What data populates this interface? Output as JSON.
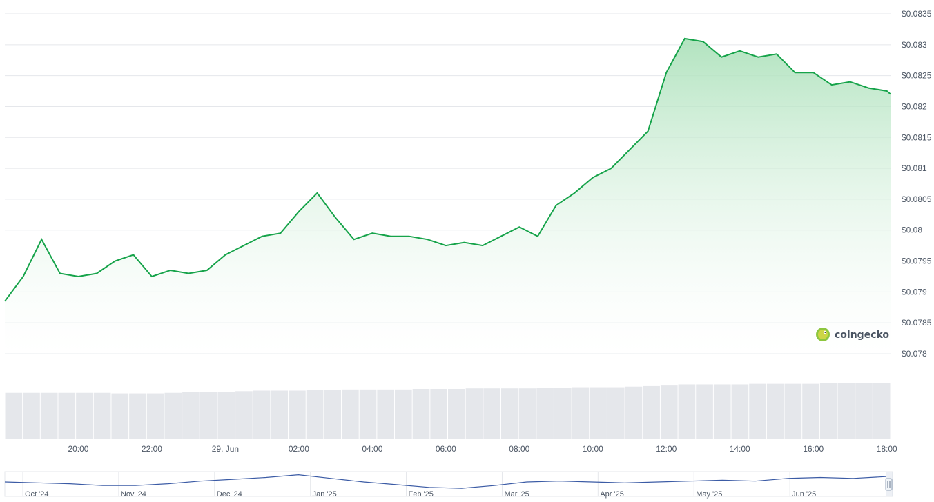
{
  "brand": {
    "name": "coingecko",
    "logo_icon": "coingecko-gecko-icon",
    "accent": "#8dc63f"
  },
  "colors": {
    "line": "#16a34a",
    "area_top": "#b7e6c3",
    "volume": "#e5e7eb",
    "navigator_line": "#3b5ba5",
    "grid": "#e5e7eb"
  },
  "chart_data": {
    "type": "area",
    "title": "",
    "xlabel": "",
    "ylabel": "",
    "ylim": [
      0.078,
      0.0835
    ],
    "y_ticks": [
      "$0.0835",
      "$0.083",
      "$0.0825",
      "$0.082",
      "$0.0815",
      "$0.081",
      "$0.0805",
      "$0.08",
      "$0.0795",
      "$0.079",
      "$0.0785",
      "$0.078"
    ],
    "x_ticks": [
      "20:00",
      "22:00",
      "29. Jun",
      "02:00",
      "04:00",
      "06:00",
      "08:00",
      "10:00",
      "12:00",
      "14:00",
      "16:00",
      "18:00"
    ],
    "x_tick_hours": [
      20,
      22,
      24,
      26,
      28,
      30,
      32,
      34,
      36,
      38,
      40,
      42
    ],
    "grid": true,
    "series": [
      {
        "x_hours": [
          18.0,
          18.5,
          19.0,
          19.5,
          20.0,
          20.5,
          21.0,
          21.5,
          22.0,
          22.5,
          23.0,
          23.5,
          24.0,
          24.5,
          25.0,
          25.5,
          26.0,
          26.5,
          27.0,
          27.5,
          28.0,
          28.5,
          29.0,
          29.5,
          30.0,
          30.5,
          31.0,
          31.5,
          32.0,
          32.5,
          33.0,
          33.5,
          34.0,
          34.5,
          35.0,
          35.5,
          36.0,
          36.5,
          37.0,
          37.5,
          38.0,
          38.5,
          39.0,
          39.5,
          40.0,
          40.5,
          41.0,
          41.5,
          42.0,
          42.1
        ],
        "values": [
          0.07885,
          0.07925,
          0.07985,
          0.0793,
          0.07925,
          0.0793,
          0.0795,
          0.0796,
          0.07925,
          0.07935,
          0.0793,
          0.07935,
          0.0796,
          0.07975,
          0.0799,
          0.07995,
          0.0803,
          0.0806,
          0.0802,
          0.07985,
          0.07995,
          0.0799,
          0.0799,
          0.07985,
          0.07975,
          0.0798,
          0.07975,
          0.0799,
          0.08005,
          0.0799,
          0.0804,
          0.0806,
          0.08085,
          0.081,
          0.0813,
          0.0816,
          0.08255,
          0.0831,
          0.08305,
          0.0828,
          0.0829,
          0.0828,
          0.08285,
          0.08255,
          0.08255,
          0.08235,
          0.0824,
          0.0823,
          0.08225,
          0.0822
        ],
        "volume": [
          0.82,
          0.82,
          0.82,
          0.82,
          0.82,
          0.82,
          0.81,
          0.81,
          0.81,
          0.82,
          0.83,
          0.84,
          0.84,
          0.85,
          0.86,
          0.86,
          0.86,
          0.87,
          0.87,
          0.88,
          0.88,
          0.88,
          0.88,
          0.89,
          0.89,
          0.89,
          0.9,
          0.9,
          0.9,
          0.9,
          0.91,
          0.91,
          0.92,
          0.92,
          0.92,
          0.93,
          0.94,
          0.95,
          0.97,
          0.97,
          0.97,
          0.97,
          0.98,
          0.98,
          0.98,
          0.98,
          0.99,
          0.99,
          0.99,
          0.99
        ]
      }
    ],
    "navigator": {
      "labels": [
        "Oct '24",
        "Nov '24",
        "Dec '24",
        "Jan '25",
        "Feb '25",
        "Mar '25",
        "Apr '25",
        "May '25",
        "Jun '25"
      ],
      "values": [
        0.5,
        0.45,
        0.4,
        0.3,
        0.3,
        0.4,
        0.55,
        0.65,
        0.75,
        0.9,
        0.7,
        0.5,
        0.35,
        0.2,
        0.15,
        0.3,
        0.5,
        0.55,
        0.5,
        0.45,
        0.5,
        0.55,
        0.6,
        0.55,
        0.7,
        0.75,
        0.7,
        0.8
      ]
    }
  }
}
